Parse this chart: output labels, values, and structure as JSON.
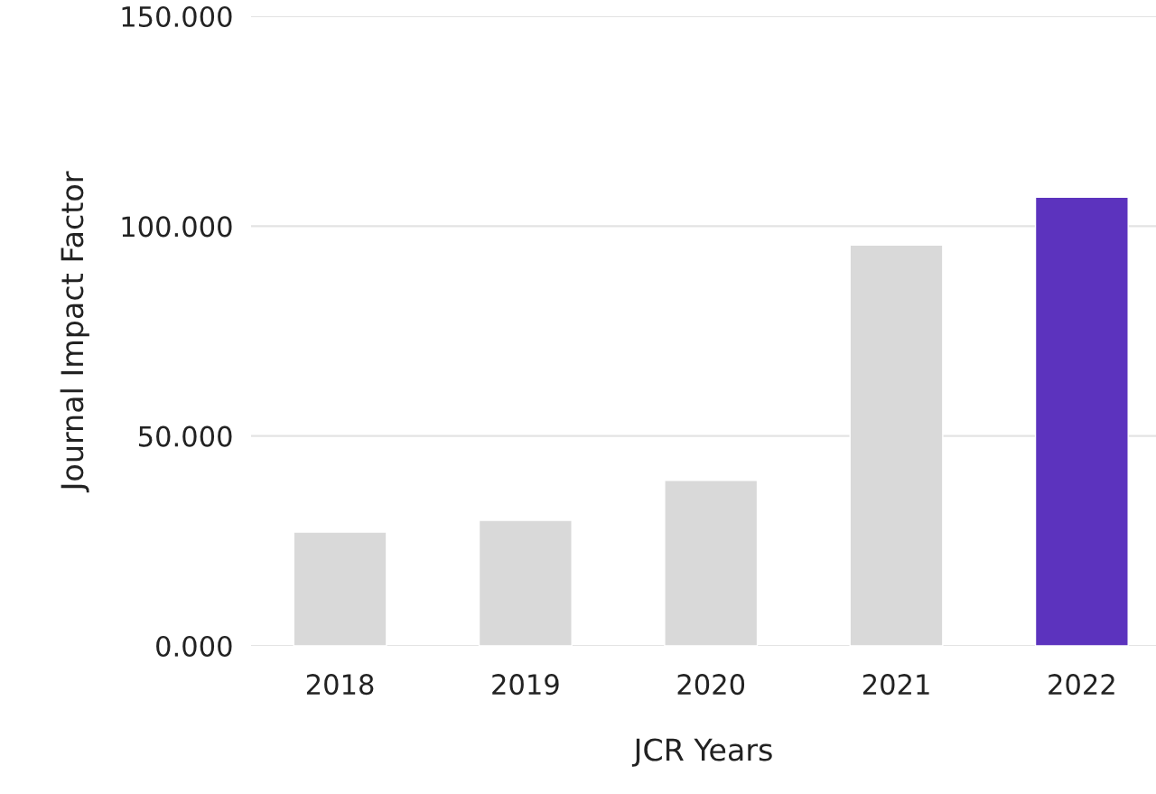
{
  "chart_data": {
    "type": "bar",
    "xlabel": "JCR Years",
    "ylabel": "Journal Impact Factor",
    "categories": [
      "2018",
      "2019",
      "2020",
      "2021",
      "2022"
    ],
    "values": [
      27.1,
      29.9,
      39.4,
      95.5,
      106.9
    ],
    "colors": [
      "#d9d9d9",
      "#d9d9d9",
      "#d9d9d9",
      "#d9d9d9",
      "#5c33be"
    ],
    "ylim": [
      0,
      150
    ],
    "yticks": [
      {
        "value": 0,
        "label": "0.000"
      },
      {
        "value": 50,
        "label": "50.000"
      },
      {
        "value": 100,
        "label": "100.000"
      },
      {
        "value": 150,
        "label": "150.000"
      }
    ],
    "grid": "y"
  }
}
